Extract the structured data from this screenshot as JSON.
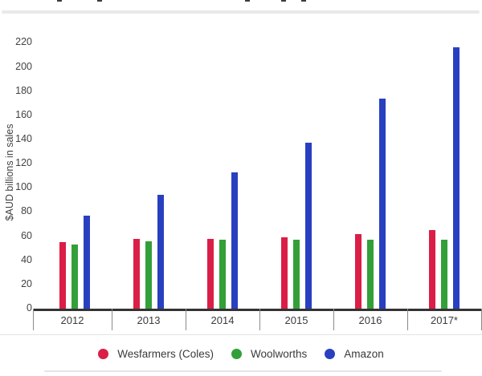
{
  "chart_data": {
    "type": "bar",
    "ylabel": "$AUD billions in sales",
    "categories": [
      "2012",
      "2013",
      "2014",
      "2015",
      "2016",
      "2017*"
    ],
    "series": [
      {
        "name": "Wesfarmers (Coles)",
        "color": "#DA1E47",
        "values": [
          55,
          58,
          58,
          59,
          62,
          65
        ]
      },
      {
        "name": "Woolworths",
        "color": "#339F39",
        "values": [
          53,
          56,
          57,
          57,
          57,
          57
        ]
      },
      {
        "name": "Amazon",
        "color": "#2840C0",
        "values": [
          77,
          94,
          113,
          137,
          174,
          216
        ]
      }
    ],
    "y_ticks": [
      0,
      20,
      40,
      60,
      80,
      100,
      120,
      140,
      160,
      180,
      200,
      220
    ],
    "ylim": [
      0,
      220
    ],
    "grid": false,
    "legend_position": "bottom",
    "axis_color": "#333333",
    "tick_label_color": "#424242"
  }
}
